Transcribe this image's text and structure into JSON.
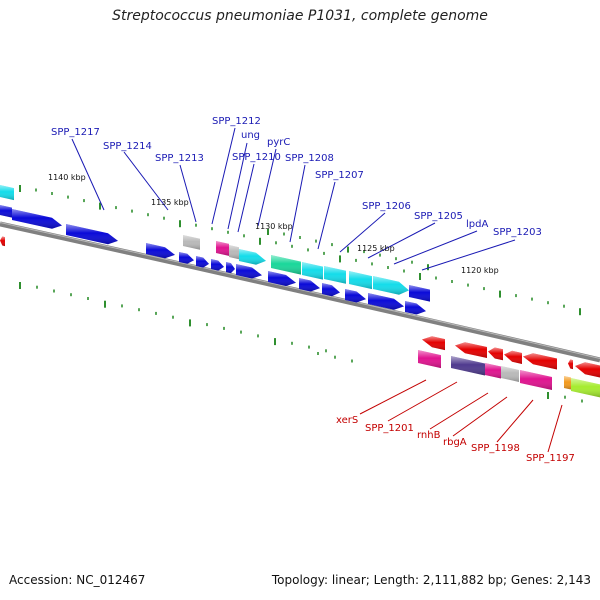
{
  "title": "Streptococcus pneumoniae P1031, complete genome",
  "footer": {
    "accession": "Accession: NC_012467",
    "stats": "Topology: linear; Length: 2,111,882 bp; Genes: 2,143"
  },
  "colors": {
    "blue": "#0a0ad8",
    "cyan": "#14dcea",
    "green": "#1ad79a",
    "magenta": "#e0138f",
    "grey": "#b9b9b9",
    "red": "#e40000",
    "purple": "#4f3a8e",
    "lime": "#a6ec2f",
    "orange": "#f39a1d",
    "label_blue": "#1a1ab4",
    "label_red": "#c30000",
    "tick": "#2f8f2f",
    "backbone": "#808080"
  },
  "scale_labels": [
    "1140 kbp",
    "1135 kbp",
    "1130 kbp",
    "1125 kbp",
    "1120 kbp"
  ],
  "upper_labels": [
    "SPP_1217",
    "SPP_1214",
    "SPP_1213",
    "SPP_1212",
    "ung",
    "SPP_1210",
    "pyrC",
    "SPP_1208",
    "SPP_1207",
    "SPP_1206",
    "SPP_1205",
    "lpdA",
    "SPP_1203"
  ],
  "lower_labels": [
    "xerS",
    "SPP_1201",
    "rnhB",
    "rbgA",
    "SPP_1198",
    "SPP_1197"
  ]
}
